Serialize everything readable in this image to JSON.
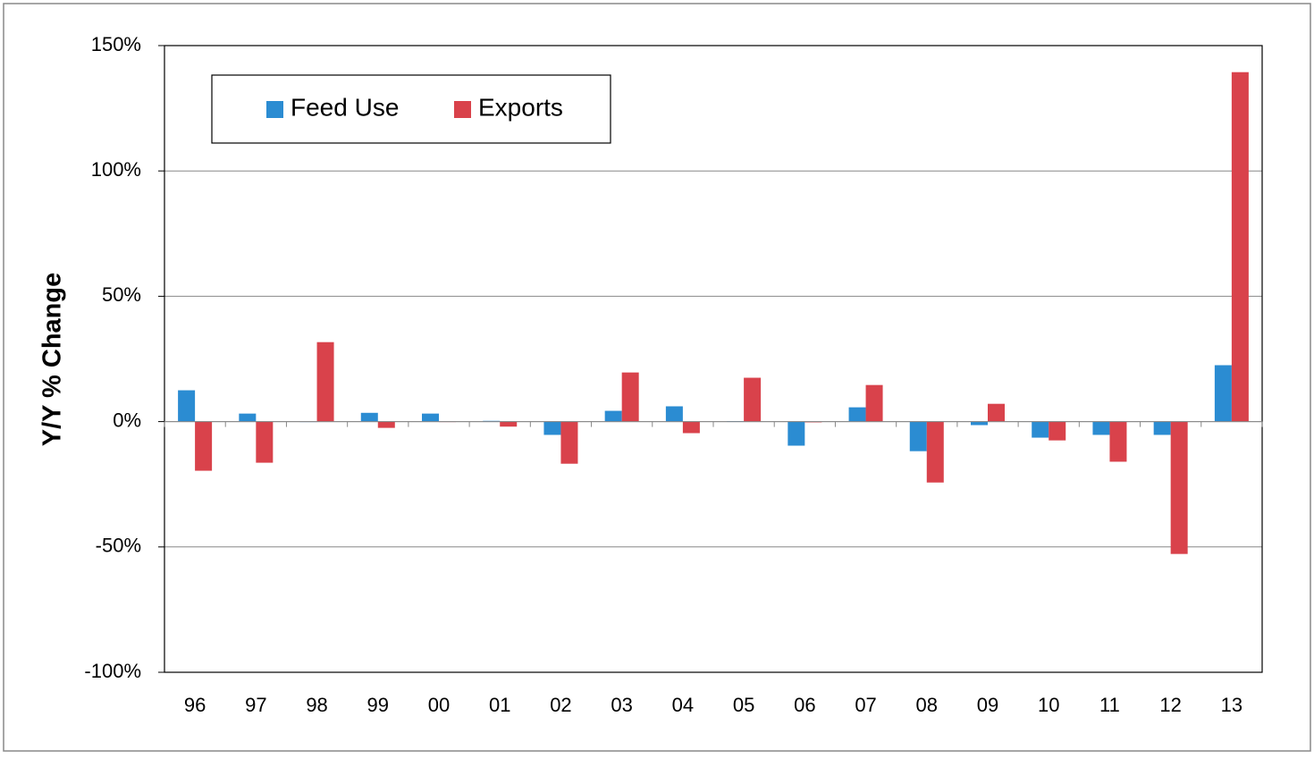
{
  "chart_data": {
    "type": "bar",
    "y_label": "Y/Y % Change",
    "categories": [
      "96",
      "97",
      "98",
      "99",
      "00",
      "01",
      "02",
      "03",
      "04",
      "05",
      "06",
      "07",
      "08",
      "09",
      "10",
      "11",
      "12",
      "13"
    ],
    "series": [
      {
        "name": "Feed Use",
        "color": "#2b8cd2",
        "values": [
          12.5,
          3.2,
          0,
          3.5,
          3.2,
          0.3,
          -5.3,
          4.3,
          6.1,
          0.2,
          -9.6,
          5.7,
          -11.8,
          -1.4,
          -6.4,
          -5.3,
          -5.3,
          22.5
        ]
      },
      {
        "name": "Exports",
        "color": "#d9424b",
        "values": [
          -19.6,
          -16.4,
          31.7,
          -2.5,
          0,
          -2,
          -16.8,
          19.6,
          -4.6,
          17.5,
          -0.3,
          14.6,
          -24.3,
          7.1,
          -7.5,
          -16,
          -52.8,
          139.4
        ]
      }
    ],
    "ylim": [
      -100,
      150
    ],
    "yticks": [
      {
        "value": -100,
        "label": "-100%"
      },
      {
        "value": -50,
        "label": "-50%"
      },
      {
        "value": 0,
        "label": "0%"
      },
      {
        "value": 50,
        "label": "50%"
      },
      {
        "value": 100,
        "label": "100%"
      },
      {
        "value": 150,
        "label": "150%"
      }
    ],
    "grid": true,
    "legend": "top-left"
  }
}
